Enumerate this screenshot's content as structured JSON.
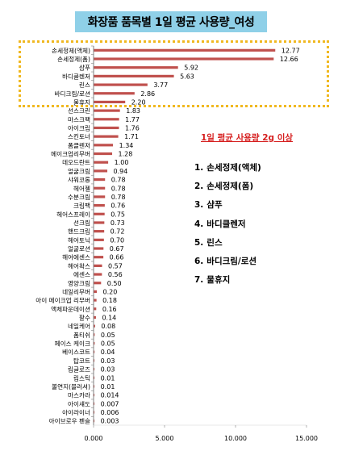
{
  "title": "화장품 품목별 1일 평균 사용량_여성",
  "callout": {
    "title": "1일 평균 사용량 2g 이상",
    "items": [
      {
        "num": "1.",
        "label": "손세정제(액체)"
      },
      {
        "num": "2.",
        "label": "손세정제(폼)"
      },
      {
        "num": "3.",
        "label": "샴푸"
      },
      {
        "num": "4.",
        "label": "바디클렌저"
      },
      {
        "num": "5.",
        "label": "린스"
      },
      {
        "num": "6.",
        "label": "바디크림/로션"
      },
      {
        "num": "7.",
        "label": "물휴지"
      }
    ]
  },
  "colors": {
    "bar": "#c0504d",
    "highlight": "#f0b820",
    "title_bg": "#8fd0e8",
    "callout": "#d62020"
  },
  "chart_data": {
    "type": "bar",
    "orientation": "horizontal",
    "xlim": [
      0,
      15
    ],
    "xticks": [
      "0.000",
      "5.000",
      "10.000",
      "15.000"
    ],
    "xtick_values": [
      0,
      5,
      10,
      15
    ],
    "categories": [
      "손세정제(액체)",
      "손세정제(폼)",
      "샴푸",
      "바디클렌저",
      "린스",
      "바디크림/로션",
      "물휴지",
      "선스크린",
      "마스크팩",
      "아이크림",
      "스킨토너",
      "폼클렌저",
      "메이크업리무버",
      "데오드란트",
      "얼굴크림",
      "샤워코롱",
      "헤어젤",
      "수분크림",
      "크림팩",
      "헤어스프레이",
      "선크림",
      "핸드크림",
      "헤어토닉",
      "얼굴로션",
      "헤어에센스",
      "헤어왁스",
      "에센스",
      "영양크림",
      "네일리무버",
      "아이 메이크업 리무버",
      "액체파운데이션",
      "팔수",
      "네일케어",
      "폼티쉬",
      "페이스 케이크",
      "베이스코트",
      "탑코트",
      "립글로즈",
      "립스틱",
      "볼연지(블러셔)",
      "마스카라",
      "아이섀도",
      "아이라이너",
      "아이브로우 펜슬"
    ],
    "values": [
      12.77,
      12.66,
      5.92,
      5.63,
      3.77,
      2.86,
      2.2,
      1.83,
      1.77,
      1.76,
      1.71,
      1.34,
      1.28,
      1.0,
      0.94,
      0.78,
      0.78,
      0.78,
      0.76,
      0.75,
      0.73,
      0.72,
      0.7,
      0.67,
      0.66,
      0.57,
      0.56,
      0.5,
      0.2,
      0.18,
      0.16,
      0.14,
      0.08,
      0.05,
      0.05,
      0.04,
      0.03,
      0.03,
      0.01,
      0.01,
      0.014,
      0.007,
      0.006,
      0.003
    ],
    "labels": [
      "12.77",
      "12.66",
      "5.92",
      "5.63",
      "3.77",
      "2.86",
      "2.20",
      "1.83",
      "1.77",
      "1.76",
      "1.71",
      "1.34",
      "1.28",
      "1.00",
      "0.94",
      "0.78",
      "0.78",
      "0.78",
      "0.76",
      "0.75",
      "0.73",
      "0.72",
      "0.70",
      "0.67",
      "0.66",
      "0.57",
      "0.56",
      "0.50",
      "0.20",
      "0.18",
      "0.16",
      "0.14",
      "0.08",
      "0.05",
      "0.05",
      "0.04",
      "0.03",
      "0.03",
      "0.01",
      "0.01",
      "0.014",
      "0.007",
      "0.006",
      "0.003"
    ]
  }
}
